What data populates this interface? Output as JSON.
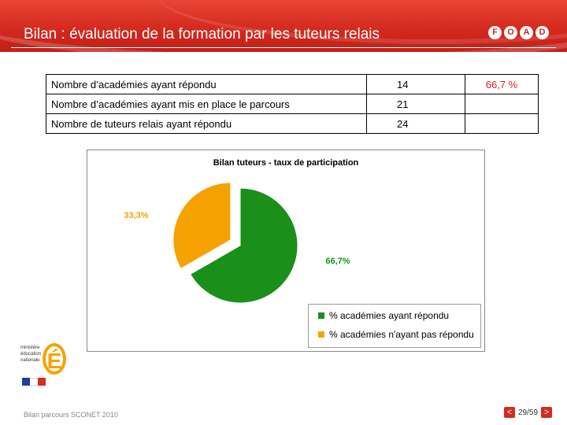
{
  "header": {
    "title": "Bilan : évaluation de la formation par les tuteurs relais",
    "logo_letters": [
      "F",
      "O",
      "A",
      "D"
    ]
  },
  "stats_table": {
    "rows": [
      {
        "label": "Nombre d’académies ayant répondu",
        "value": "14",
        "pct": "66,7 %"
      },
      {
        "label": "Nombre d’académies ayant mis en place le parcours",
        "value": "21",
        "pct": ""
      },
      {
        "label": "Nombre de tuteurs relais ayant répondu",
        "value": "24",
        "pct": ""
      }
    ]
  },
  "chart_data": {
    "type": "pie",
    "title": "Bilan tuteurs - taux de participation",
    "labels": [
      "% académies ayant répondu",
      "% académies n'ayant pas répondu"
    ],
    "values": [
      66.7,
      33.3
    ],
    "data_labels": [
      "66,7%",
      "33,3%"
    ],
    "colors": [
      "#1a8f1a",
      "#f5a200"
    ],
    "legend_position": "bottom-right"
  },
  "logo": {
    "ministry_text": "ministère éducation nationale",
    "letter": "É"
  },
  "footer": {
    "text": "Bilan parcours SCONET 2010",
    "page": "29/59",
    "prev": "<",
    "next": ">"
  }
}
